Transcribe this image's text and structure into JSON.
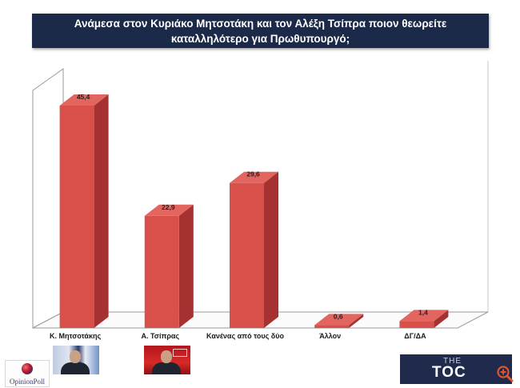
{
  "title": "Ανάμεσα στον Κυριάκο Μητσοτάκη και τον Αλέξη Τσίπρα ποιον θεωρείτε καταλληλότερο για Πρωθυπουργό;",
  "chart_data": {
    "type": "bar",
    "categories": [
      "Κ. Μητσοτάκης",
      "Α. Τσίπρας",
      "Κανένας από τους δύο",
      "Άλλον",
      "ΔΓ/ΔΑ"
    ],
    "values": [
      45.4,
      22.9,
      29.6,
      0.6,
      1.4
    ],
    "data_labels": [
      "45,4",
      "22,9",
      "29,6",
      "0,6",
      "1,4"
    ],
    "ylim": [
      0,
      55
    ],
    "grid": false,
    "legend": "none",
    "three_d": true,
    "colors": {
      "bar_front": "#d9504b",
      "bar_side": "#a53230",
      "bar_top": "#e26560",
      "frame": "#9a9a9a"
    }
  },
  "footer": {
    "left_logo_text": "OpinionPoll",
    "right_logo_top": "THE",
    "right_logo_main": "TOC",
    "zoom_icon": "magnifier-icon",
    "accent": "#e0542e"
  }
}
